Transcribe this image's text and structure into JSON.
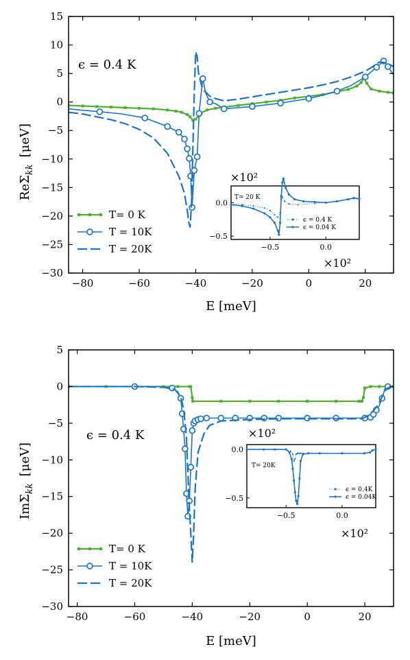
{
  "chart_data": [
    {
      "type": "line",
      "panel": "top",
      "ylabel": "ReΣ_kk [μeV]",
      "ylabel_parts": {
        "main": "ReΣ",
        "sub": "kk",
        "unit": "[μeV]"
      },
      "xlabel": "E [meV]",
      "xlim": [
        -85,
        30
      ],
      "ylim": [
        -30,
        15
      ],
      "xticks": [
        -80,
        -60,
        -40,
        -20,
        0,
        20
      ],
      "yticks": [
        -30,
        -25,
        -20,
        -15,
        -10,
        -5,
        0,
        5,
        10,
        15
      ],
      "annotation": "ϵ = 0.4 K",
      "colors": {
        "green": "#4daf32",
        "blue": "#1a73c9"
      },
      "series": [
        {
          "name": "T= 0 K",
          "color": "#4daf32",
          "style": "solid-square",
          "x": [
            -85,
            -80,
            -75,
            -70,
            -65,
            -60,
            -55,
            -50,
            -47,
            -45,
            -43,
            -42,
            -41,
            -40,
            -39,
            -38,
            -36,
            -33,
            -30,
            -25,
            -20,
            -15,
            -10,
            -5,
            0,
            5,
            10,
            14,
            17,
            18.5,
            19.5,
            20.5,
            22,
            25,
            28,
            30
          ],
          "y": [
            -0.6,
            -0.7,
            -0.8,
            -0.9,
            -1.0,
            -1.1,
            -1.2,
            -1.4,
            -1.6,
            -1.8,
            -2.2,
            -2.6,
            -3.2,
            -3.0,
            -2.4,
            -1.9,
            -1.4,
            -1.1,
            -0.9,
            -0.6,
            -0.3,
            0.0,
            0.3,
            0.7,
            1.0,
            1.3,
            1.8,
            2.2,
            2.8,
            3.4,
            4.2,
            3.3,
            2.3,
            1.9,
            1.7,
            1.6
          ]
        },
        {
          "name": "T = 10K",
          "color": "#1a73c9",
          "style": "solid-circle",
          "x": [
            -85,
            -81,
            -74,
            -66,
            -58,
            -50,
            -46,
            -44,
            -43,
            -42.3,
            -41.8,
            -41.3,
            -40.5,
            -39.5,
            -38.8,
            -38.2,
            -37.5,
            -36.5,
            -35,
            -33,
            -30,
            -25,
            -20,
            -15,
            -10,
            -5,
            0,
            5,
            10,
            15,
            20,
            24,
            26.5,
            28,
            30
          ],
          "y": [
            -1.2,
            -1.4,
            -1.7,
            -2.1,
            -2.8,
            -4.3,
            -5.3,
            -6.5,
            -8.2,
            -9.9,
            -13,
            -18.5,
            -12,
            -9.6,
            -2,
            1,
            4.1,
            1.6,
            0,
            -0.3,
            -1.2,
            -1.0,
            -0.8,
            -0.5,
            -0.2,
            0.2,
            0.6,
            1.2,
            1.9,
            2.9,
            4.4,
            6.1,
            7.2,
            6.2,
            4.8
          ]
        },
        {
          "name": "T = 20K",
          "color": "#1a73c9",
          "style": "dashed",
          "x": [
            -85,
            -80,
            -75,
            -70,
            -65,
            -60,
            -55,
            -50,
            -46,
            -44,
            -43,
            -42.5,
            -42,
            -41.5,
            -41,
            -40.5,
            -40,
            -39.5,
            -39,
            -38,
            -37,
            -36,
            -35,
            -33,
            -30,
            -25,
            -20,
            -15,
            -10,
            -5,
            0,
            5,
            10,
            15,
            20,
            22,
            24,
            25,
            27,
            29,
            30
          ],
          "y": [
            -1.8,
            -2.1,
            -2.6,
            -3.1,
            -3.8,
            -4.8,
            -6.3,
            -9,
            -13,
            -16,
            -19,
            -21,
            -22,
            -18,
            -8,
            2,
            8.8,
            8,
            5,
            3,
            2,
            1.5,
            1,
            0.6,
            0.2,
            0.5,
            0.9,
            1.3,
            1.7,
            2.1,
            2.5,
            3.0,
            3.6,
            4.4,
            5.4,
            6.0,
            6.7,
            7.0,
            6.9,
            6.5,
            6.2
          ]
        }
      ],
      "legend": {
        "placement": "lower-left"
      },
      "inset": {
        "annotation": "T= 20 K",
        "sci_top": "×10²",
        "sci_bottom": "×10²",
        "xlim": [
          -0.85,
          0.3
        ],
        "ylim": [
          -0.55,
          0.25
        ],
        "xticks": [
          -0.5,
          0.0
        ],
        "xtick_labels": [
          "−0.5",
          "0.0"
        ],
        "yticks": [
          0.0,
          -0.5
        ],
        "ytick_labels": [
          "0.0",
          "−0.5"
        ],
        "series": [
          {
            "name": "ϵ = 0.4 K",
            "style": "dotted-points",
            "x": [
              -0.85,
              -0.75,
              -0.65,
              -0.55,
              -0.5,
              -0.46,
              -0.43,
              -0.41,
              -0.4,
              -0.39,
              -0.37,
              -0.33,
              -0.25,
              -0.1,
              0.0,
              0.1,
              0.2,
              0.25,
              0.3
            ],
            "y": [
              -0.02,
              -0.03,
              -0.05,
              -0.08,
              -0.12,
              -0.18,
              -0.22,
              -0.15,
              0.04,
              0.08,
              0.02,
              -0.02,
              -0.03,
              -0.01,
              0.0,
              0.02,
              0.05,
              0.06,
              0.05
            ]
          },
          {
            "name": "ϵ = 0.04 K",
            "style": "solid-points",
            "x": [
              -0.85,
              -0.75,
              -0.65,
              -0.55,
              -0.5,
              -0.46,
              -0.43,
              -0.42,
              -0.41,
              -0.4,
              -0.39,
              -0.38,
              -0.36,
              -0.33,
              -0.28,
              -0.2,
              -0.1,
              0.0,
              0.1,
              0.2,
              0.25,
              0.3
            ],
            "y": [
              -0.03,
              -0.05,
              -0.09,
              -0.16,
              -0.22,
              -0.3,
              -0.42,
              -0.48,
              -0.3,
              0.1,
              0.3,
              0.36,
              0.22,
              0.12,
              0.05,
              0.02,
              0.01,
              0.0,
              0.02,
              0.05,
              0.07,
              0.06
            ]
          }
        ]
      }
    },
    {
      "type": "line",
      "panel": "bottom",
      "ylabel": "ImΣ_kk [μeV]",
      "ylabel_parts": {
        "main": "ImΣ",
        "sub": "kk",
        "unit": "[μeV]"
      },
      "xlabel": "E [meV]",
      "xlim": [
        -83,
        30
      ],
      "ylim": [
        -30,
        5
      ],
      "xticks": [
        -80,
        -60,
        -40,
        -20,
        0,
        20
      ],
      "yticks": [
        -30,
        -25,
        -20,
        -15,
        -10,
        -5,
        0,
        5
      ],
      "annotation": "ϵ = 0.4 K",
      "series": [
        {
          "name": "T= 0 K",
          "color": "#4daf32",
          "style": "solid-square",
          "x": [
            -83,
            -70,
            -60,
            -50,
            -45,
            -41,
            -40.5,
            -40,
            -39.8,
            -30,
            -20,
            -10,
            0,
            10,
            18,
            19,
            19.5,
            20,
            22,
            25,
            28,
            30
          ],
          "y": [
            0,
            0,
            0,
            0,
            0,
            0,
            0,
            -1.5,
            -2.0,
            -2.0,
            -2.0,
            -2.0,
            -2.0,
            -2.0,
            -2.0,
            -2.0,
            -1.5,
            -0.2,
            0,
            0,
            0,
            0
          ],
          "mark_step": 0.6
        },
        {
          "name": "T = 10K",
          "color": "#1a73c9",
          "style": "solid-circle",
          "x": [
            -83,
            -73,
            -60,
            -52,
            -47,
            -45,
            -44,
            -43.5,
            -43,
            -42.5,
            -42,
            -41.5,
            -41,
            -40.5,
            -40,
            -39.5,
            -39,
            -38,
            -37,
            -35,
            -30,
            -25,
            -20,
            -15,
            -10,
            0,
            10,
            20,
            22,
            23,
            24,
            25,
            26,
            27,
            28,
            30
          ],
          "y": [
            0,
            0,
            0,
            0,
            -0.2,
            -0.7,
            -1.6,
            -3.7,
            -5.8,
            -8.5,
            -14.6,
            -17.7,
            -15.6,
            -11,
            -6,
            -5,
            -4.7,
            -4.5,
            -4.4,
            -4.3,
            -4.3,
            -4.3,
            -4.3,
            -4.3,
            -4.3,
            -4.3,
            -4.3,
            -4.3,
            -4.2,
            -3.8,
            -3.2,
            -2.6,
            -1.6,
            -0.3,
            0,
            0
          ]
        },
        {
          "name": "T = 20K",
          "color": "#1a73c9",
          "style": "dashed",
          "x": [
            -83,
            -70,
            -60,
            -50,
            -46,
            -44,
            -43,
            -42,
            -41.5,
            -41,
            -40.5,
            -40,
            -39.5,
            -39,
            -38,
            -36,
            -34,
            -30,
            -20,
            -10,
            0,
            10,
            19,
            20,
            21,
            22,
            23,
            24,
            25,
            26,
            27,
            28,
            30
          ],
          "y": [
            0,
            0,
            0,
            -0.1,
            -0.4,
            -1.4,
            -3,
            -7,
            -12,
            -16.5,
            -20,
            -24,
            -20,
            -14,
            -9,
            -6.5,
            -5.3,
            -4.7,
            -4.5,
            -4.4,
            -4.4,
            -4.4,
            -4.4,
            -4.2,
            -4,
            -3.7,
            -3.3,
            -2.8,
            -2.2,
            -1.4,
            -0.6,
            -0.2,
            0
          ]
        }
      ],
      "legend": {
        "placement": "lower-left"
      },
      "inset": {
        "annotation": "T= 20K",
        "sci_top": "×10²",
        "sci_bottom": "×10²",
        "xlim": [
          -0.85,
          0.3
        ],
        "ylim": [
          -0.6,
          0.05
        ],
        "xticks": [
          -0.5,
          0.0
        ],
        "xtick_labels": [
          "−0.5",
          "0.0"
        ],
        "yticks": [
          0.0,
          -0.5
        ],
        "ytick_labels": [
          "0.0",
          "−0.5"
        ],
        "series": [
          {
            "name": "ϵ = 0.4K",
            "style": "dotted-points",
            "x": [
              -0.85,
              -0.7,
              -0.6,
              -0.5,
              -0.46,
              -0.44,
              -0.43,
              -0.42,
              -0.41,
              -0.4,
              -0.39,
              -0.38,
              -0.37,
              -0.35,
              -0.3,
              -0.2,
              0.0,
              0.2,
              0.25,
              0.27,
              0.3
            ],
            "y": [
              0.0,
              0.0,
              0.0,
              0.0,
              -0.02,
              -0.05,
              -0.12,
              -0.1,
              -0.05,
              -0.04,
              -0.04,
              -0.04,
              -0.04,
              -0.04,
              -0.04,
              -0.04,
              -0.04,
              -0.04,
              -0.03,
              -0.01,
              0.0
            ]
          },
          {
            "name": "ϵ = 0.04K",
            "style": "solid-points",
            "x": [
              -0.85,
              -0.7,
              -0.6,
              -0.5,
              -0.47,
              -0.45,
              -0.44,
              -0.43,
              -0.42,
              -0.41,
              -0.4,
              -0.39,
              -0.38,
              -0.37,
              -0.35,
              -0.3,
              -0.2,
              0.0,
              0.2,
              0.25,
              0.27,
              0.3
            ],
            "y": [
              0.0,
              0.0,
              0.0,
              0.0,
              -0.03,
              -0.1,
              -0.2,
              -0.32,
              -0.44,
              -0.53,
              -0.56,
              -0.48,
              -0.3,
              -0.12,
              -0.05,
              -0.04,
              -0.04,
              -0.04,
              -0.04,
              -0.03,
              -0.01,
              0.0
            ]
          }
        ]
      }
    }
  ]
}
